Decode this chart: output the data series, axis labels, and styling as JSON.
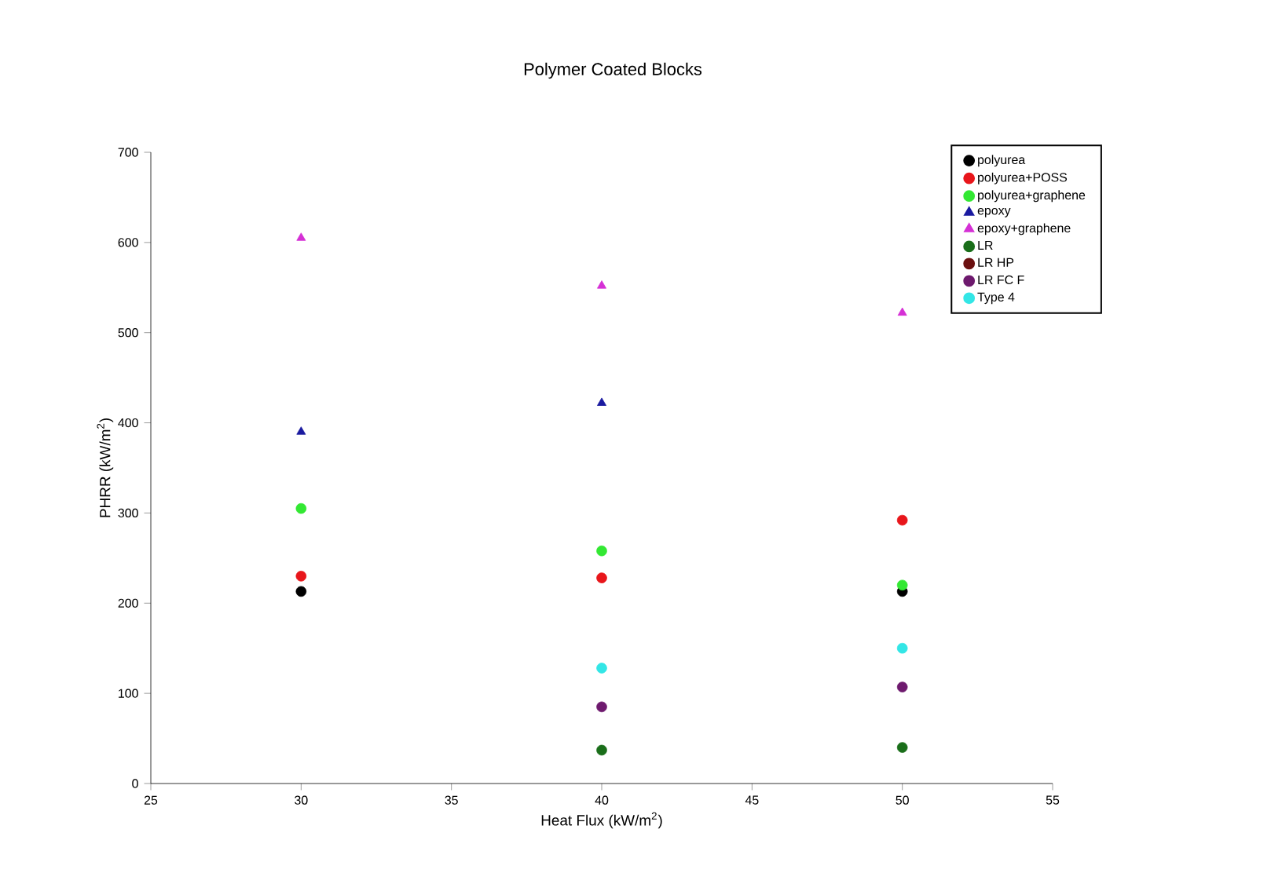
{
  "chart_data": {
    "type": "scatter",
    "title": "Polymer Coated Blocks",
    "xlabel": "Heat Flux (kW/m$^{2}$)",
    "ylabel": "PHRR (kW/m$^{2}$)",
    "x": [
      30,
      40,
      50
    ],
    "series": [
      {
        "name": "polyurea",
        "color": "#000000",
        "marker": "circle",
        "values": [
          213,
          null,
          213
        ]
      },
      {
        "name": "polyurea+POSS",
        "color": "#e8161b",
        "marker": "circle",
        "values": [
          230,
          228,
          292
        ]
      },
      {
        "name": "polyurea+graphene",
        "color": "#33e833",
        "marker": "circle",
        "values": [
          305,
          258,
          220
        ]
      },
      {
        "name": "epoxy",
        "color": "#1a1aa0",
        "marker": "triangle",
        "values": [
          390,
          422,
          null
        ]
      },
      {
        "name": "epoxy+graphene",
        "color": "#d530d5",
        "marker": "triangle",
        "values": [
          605,
          552,
          522
        ]
      },
      {
        "name": "LR",
        "color": "#1a6e1a",
        "marker": "circle",
        "values": [
          null,
          37,
          40
        ]
      },
      {
        "name": "LR HP",
        "color": "#6b1010",
        "marker": "circle",
        "values": [
          null,
          null,
          null
        ]
      },
      {
        "name": "LR FC F",
        "color": "#6e1a6e",
        "marker": "circle",
        "values": [
          null,
          85,
          107
        ]
      },
      {
        "name": "Type 4",
        "color": "#33e6e6",
        "marker": "circle",
        "values": [
          null,
          128,
          150
        ]
      }
    ],
    "xlim": [
      25,
      55
    ],
    "ylim": [
      0,
      700
    ],
    "xticks": [
      25,
      30,
      35,
      40,
      45,
      50,
      55
    ],
    "yticks": [
      0,
      100,
      200,
      300,
      400,
      500,
      600,
      700
    ],
    "grid": false,
    "legend": "top right"
  }
}
